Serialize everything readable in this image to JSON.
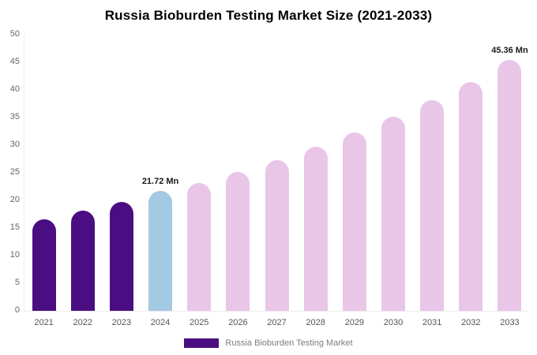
{
  "title": "Russia Bioburden Testing Market Size (2021-2033)",
  "legend": {
    "label": "Russia Bioburden Testing Market",
    "swatch_color": "#4a0e82"
  },
  "chart_data": {
    "type": "bar",
    "title": "Russia Bioburden Testing Market Size (2021-2033)",
    "categories": [
      "2021",
      "2022",
      "2023",
      "2024",
      "2025",
      "2026",
      "2027",
      "2028",
      "2029",
      "2030",
      "2031",
      "2032",
      "2033"
    ],
    "values": [
      16.6,
      18.1,
      19.7,
      21.72,
      23.2,
      25.1,
      27.3,
      29.7,
      32.3,
      35.1,
      38.1,
      41.4,
      45.36
    ],
    "bar_roles": [
      "historical",
      "historical",
      "historical",
      "base_year",
      "forecast",
      "forecast",
      "forecast",
      "forecast",
      "forecast",
      "forecast",
      "forecast",
      "forecast",
      "forecast"
    ],
    "colors": {
      "historical": "#4a0e82",
      "base_year": "#a3c9e3",
      "forecast": "#e9c6e8"
    },
    "annotations": [
      {
        "category": "2024",
        "text": "21.72 Mn"
      },
      {
        "category": "2033",
        "text": "45.36 Mn"
      }
    ],
    "xlabel": "",
    "ylabel": "",
    "unit": "Mn",
    "ylim": [
      0,
      50
    ],
    "yticks": [
      0,
      5,
      10,
      15,
      20,
      25,
      30,
      35,
      40,
      45,
      50
    ],
    "grid": false,
    "legend_position": "bottom"
  }
}
